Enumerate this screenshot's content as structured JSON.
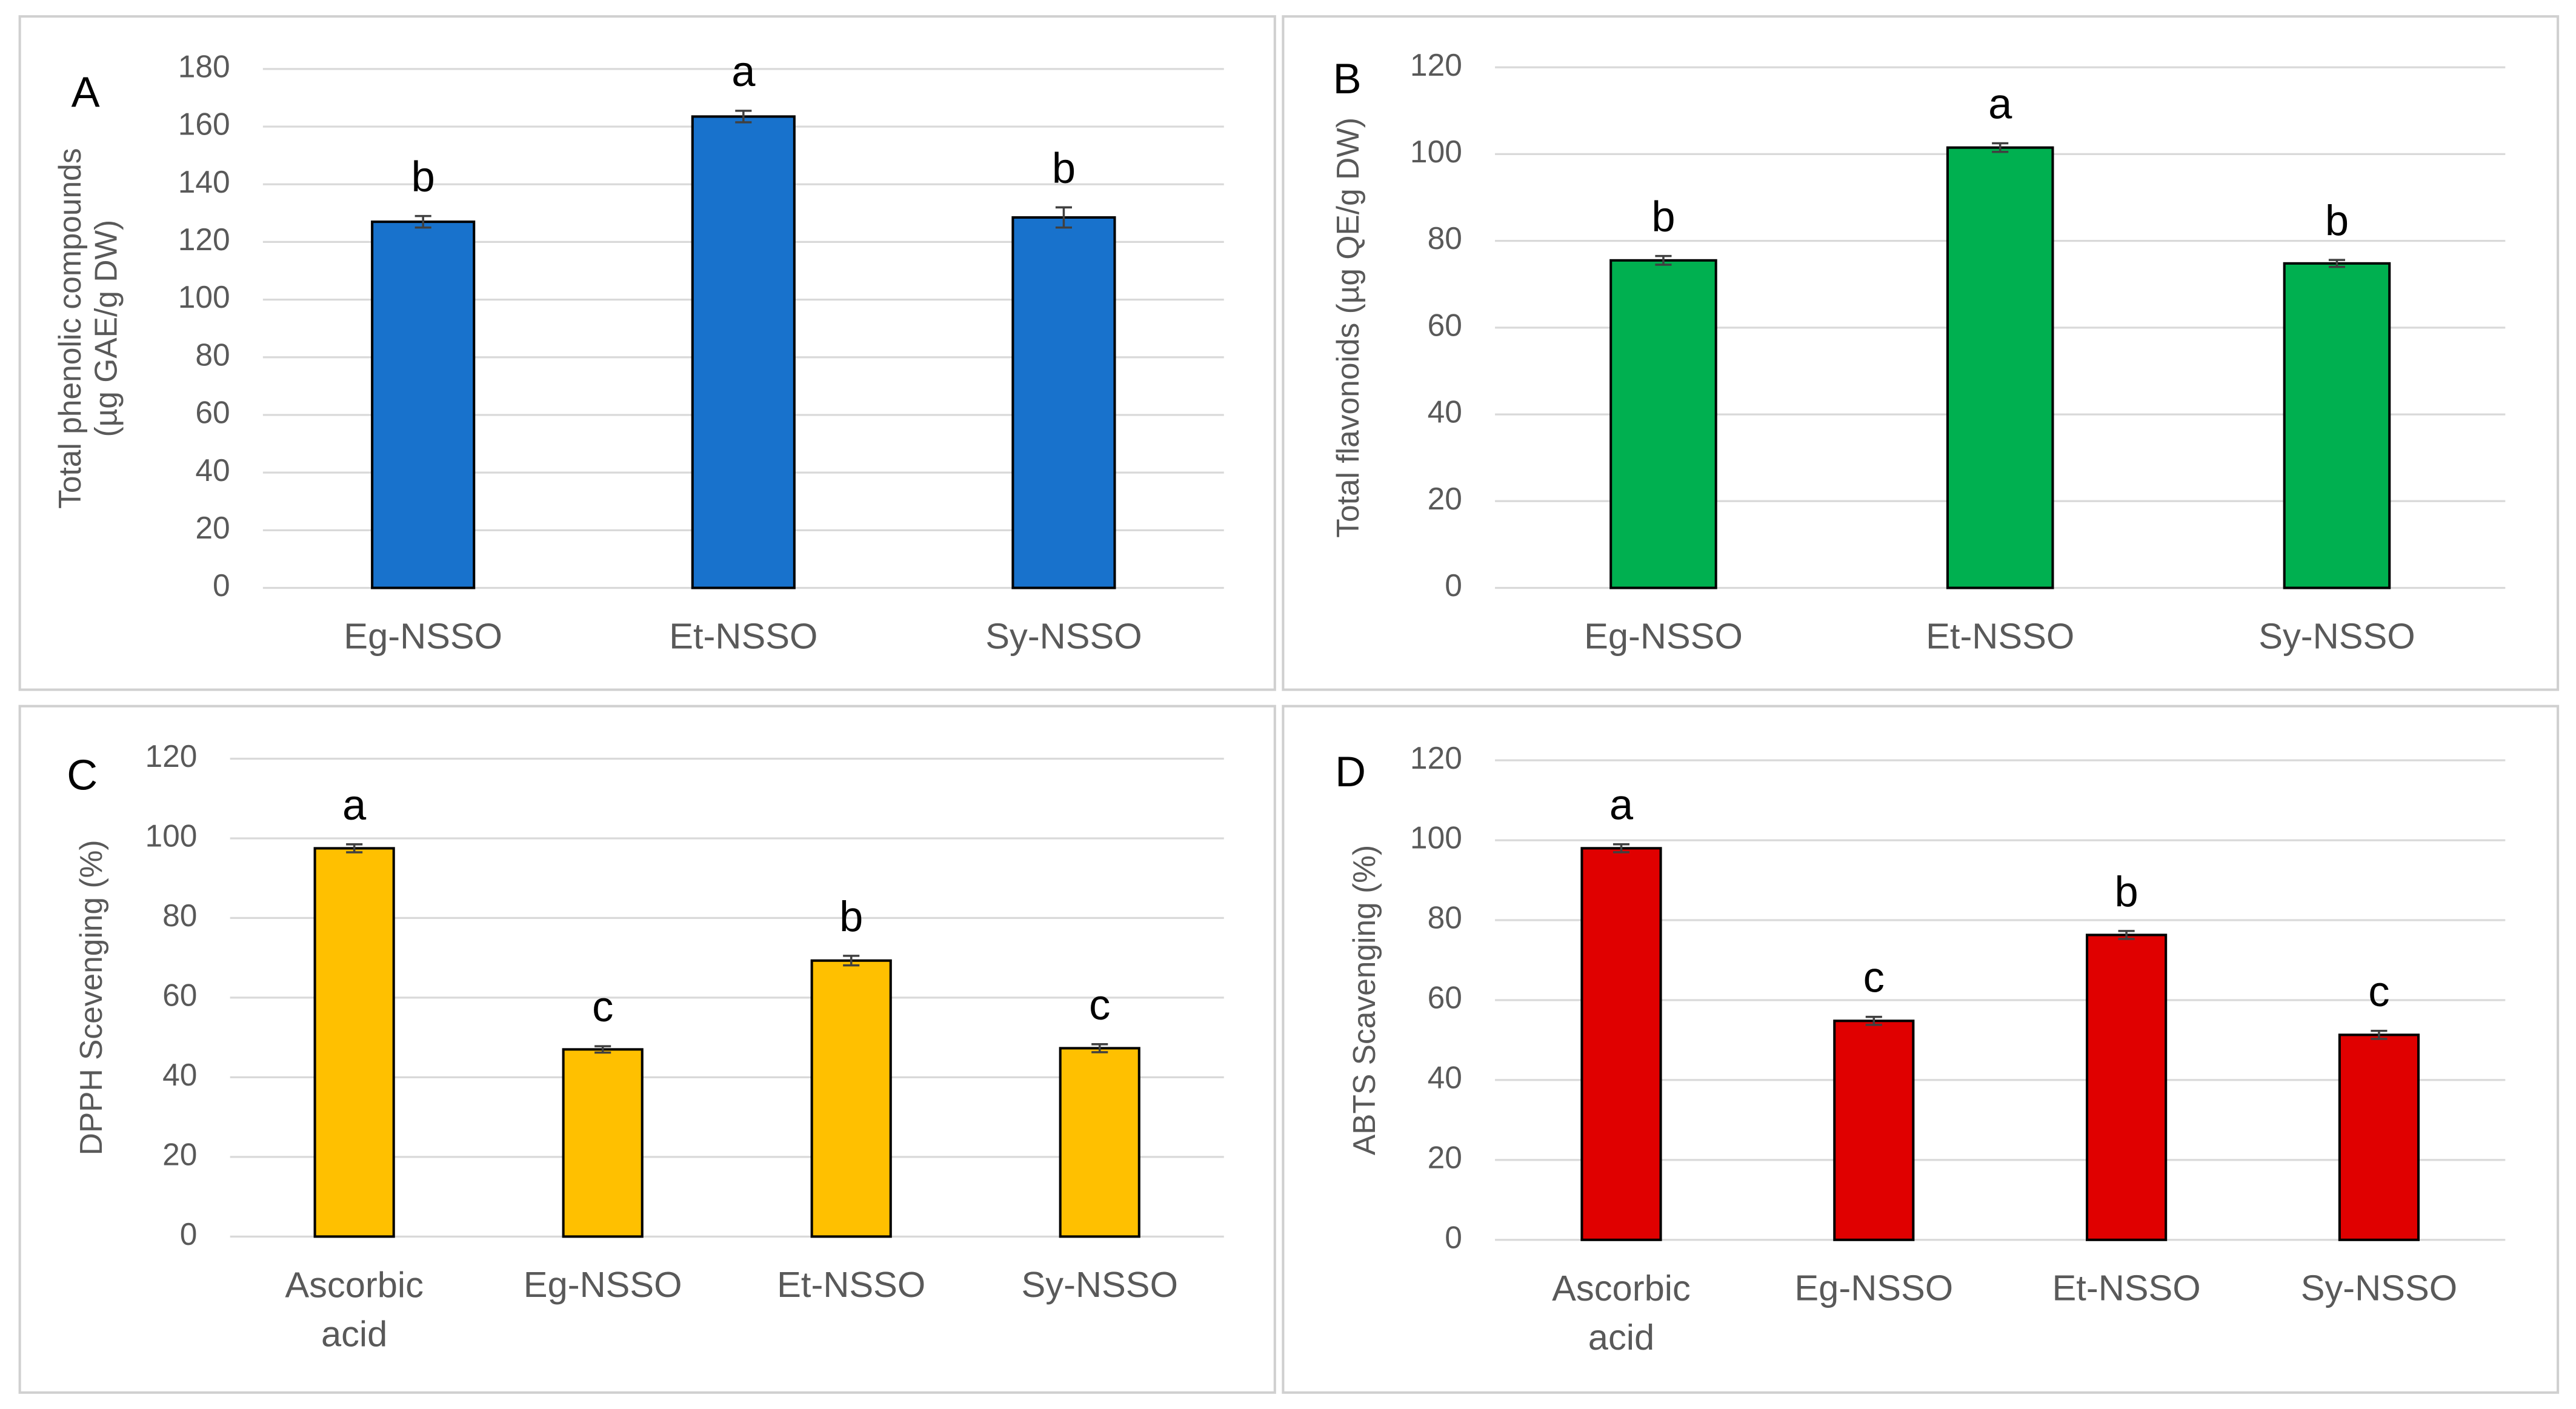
{
  "chart_data": [
    {
      "type": "bar",
      "panel": "A",
      "ylabel": [
        "Total phenolic compounds",
        "(µg GAE/g DW)"
      ],
      "categories": [
        "Eg-NSSO",
        "Et-NSSO",
        "Sy-NSSO"
      ],
      "values": [
        127,
        163.5,
        128.5
      ],
      "errors": [
        2,
        2,
        3.5
      ],
      "annotations": [
        "b",
        "a",
        "b"
      ],
      "color": "#1872cc",
      "ylim": [
        0,
        180
      ],
      "yticks": [
        0,
        20,
        40,
        60,
        80,
        100,
        120,
        140,
        160,
        180
      ],
      "grid": true
    },
    {
      "type": "bar",
      "panel": "B",
      "ylabel": [
        "Total flavonoids (µg QE/g DW)"
      ],
      "categories": [
        "Eg-NSSO",
        "Et-NSSO",
        "Sy-NSSO"
      ],
      "values": [
        75.5,
        101.5,
        74.8
      ],
      "errors": [
        1,
        1,
        0.8
      ],
      "annotations": [
        "b",
        "a",
        "b"
      ],
      "color": "#00b050",
      "ylim": [
        0,
        120
      ],
      "yticks": [
        0,
        20,
        40,
        60,
        80,
        100,
        120
      ],
      "grid": true
    },
    {
      "type": "bar",
      "panel": "C",
      "ylabel": [
        "DPPH Scevenging (%)"
      ],
      "categories": [
        "Ascorbic acid",
        "Eg-NSSO",
        "Et-NSSO",
        "Sy-NSSO"
      ],
      "values": [
        97.5,
        47,
        69.3,
        47.3
      ],
      "errors": [
        1,
        0.8,
        1.2,
        1
      ],
      "annotations": [
        "a",
        "c",
        "b",
        "c"
      ],
      "color": "#ffc000",
      "ylim": [
        0,
        120
      ],
      "yticks": [
        0,
        20,
        40,
        60,
        80,
        100,
        120
      ],
      "grid": true
    },
    {
      "type": "bar",
      "panel": "D",
      "ylabel": [
        "ABTS Scavenging (%)"
      ],
      "categories": [
        "Ascorbic acid",
        "Eg-NSSO",
        "Et-NSSO",
        "Sy-NSSO"
      ],
      "values": [
        98,
        54.8,
        76.3,
        51.3
      ],
      "errors": [
        1,
        1,
        1,
        1
      ],
      "annotations": [
        "a",
        "c",
        "b",
        "c"
      ],
      "color": "#e00000",
      "ylim": [
        0,
        120
      ],
      "yticks": [
        0,
        20,
        40,
        60,
        80,
        100,
        120
      ],
      "grid": true
    }
  ]
}
